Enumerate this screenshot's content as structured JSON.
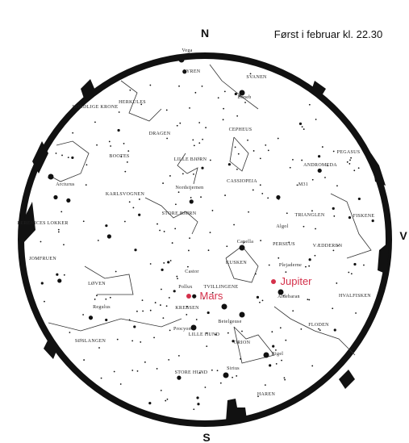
{
  "header": {
    "title": "Først i februar kl. 22.30"
  },
  "compass": {
    "north": "N",
    "south": "S",
    "west": "V"
  },
  "labels": [
    "Vega",
    "LYREN",
    "SVANEN",
    "Deneb",
    "HERKULES",
    "NORDLIGE KRONE",
    "DRAGEN",
    "CEPHEUS",
    "BOOTES",
    "LILLE BJØRN",
    "CASSIOPEIA",
    "ANDROMEDA",
    "PEGASUS",
    "M31",
    "Arcturus",
    "KARLSVOGNEN",
    "Nordstjernen",
    "TRIANGLEN",
    "FISKENE",
    "BERENICES LOKKER",
    "STORE BJØRN",
    "Algol",
    "Capella",
    "PERSEUS",
    "VÆDDEREN",
    "JOMFRUEN",
    "KUSKEN",
    "Plejaderne",
    "Castor",
    "Pollux",
    "TVILLINGENE",
    "LØVEN",
    "Regulus",
    "KREBSEN",
    "Aldebaran",
    "HVALFISKEN",
    "Betelgeuse",
    "Procyon",
    "LILLE HUND",
    "SØSLANGEN",
    "FLODEN",
    "ORION",
    "Rigel",
    "STORE HUND",
    "Sirius",
    "HAREN"
  ],
  "planets": [
    "Jupiter",
    "Mars"
  ]
}
